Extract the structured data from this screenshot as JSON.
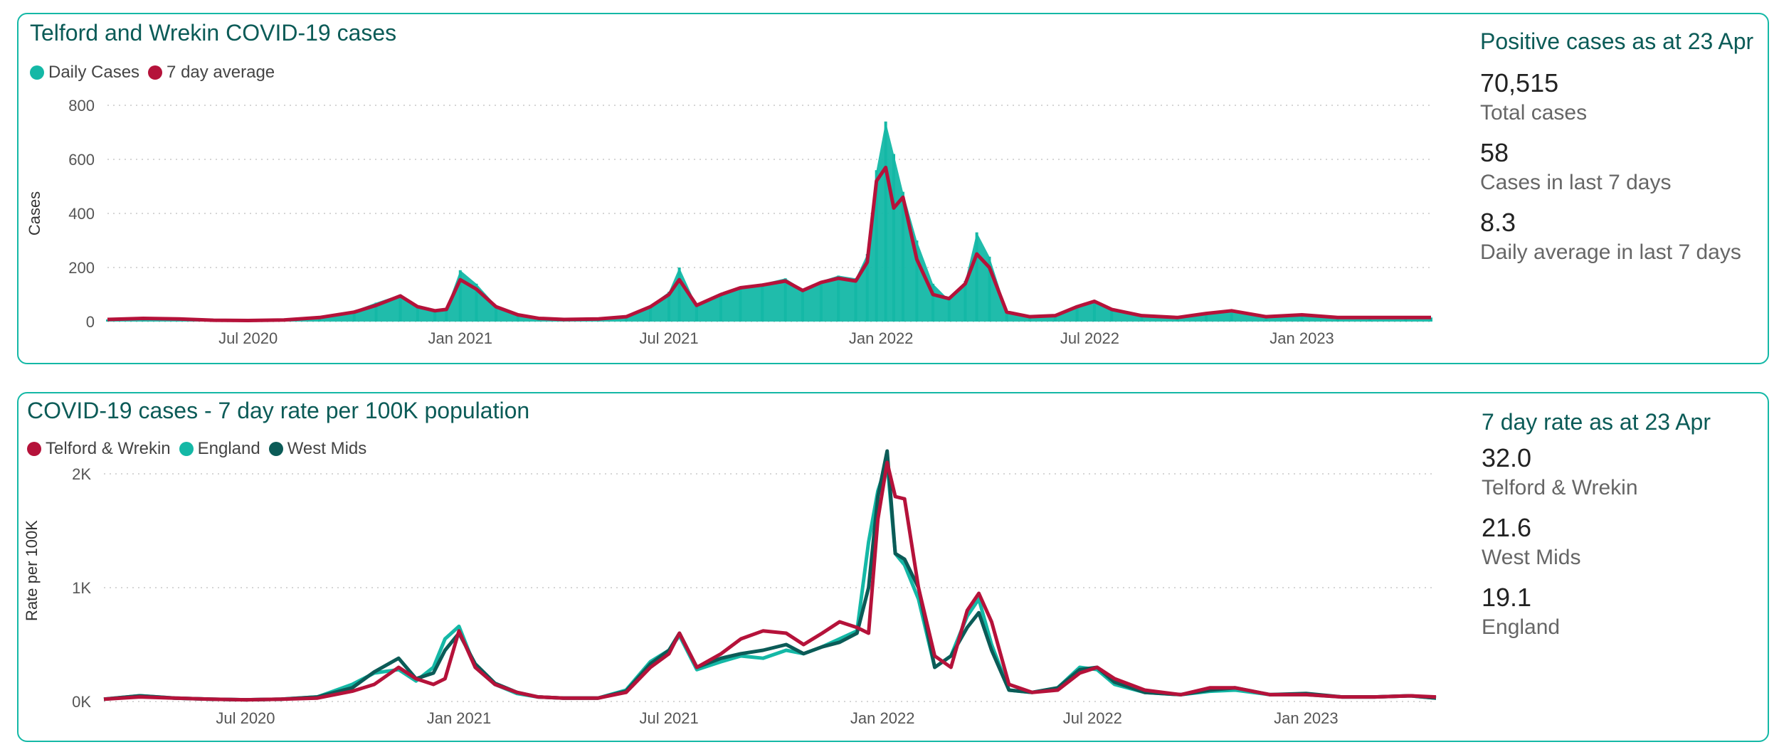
{
  "cases_panel": {
    "title": "Telford and Wrekin COVID-19 cases",
    "legend": [
      {
        "label": "Daily Cases",
        "color": "#14b8a6"
      },
      {
        "label": "7 day average",
        "color": "#b5123a"
      }
    ],
    "kpi_heading": "Positive cases as at 23 Apr",
    "kpis": [
      {
        "value": "70,515",
        "label": "Total cases"
      },
      {
        "value": "58",
        "label": "Cases in last 7 days"
      },
      {
        "value": "8.3",
        "label": "Daily average in last 7 days"
      }
    ]
  },
  "rate_panel": {
    "title": "COVID-19 cases - 7 day rate per 100K population",
    "legend": [
      {
        "label": "Telford & Wrekin",
        "color": "#b5123a"
      },
      {
        "label": "England",
        "color": "#14b8a6"
      },
      {
        "label": "West Mids",
        "color": "#0b5b57"
      }
    ],
    "kpi_heading": "7 day rate as at 23 Apr",
    "kpis": [
      {
        "value": "32.0",
        "label": "Telford & Wrekin"
      },
      {
        "value": "21.6",
        "label": "West Mids"
      },
      {
        "value": "19.1",
        "label": "England"
      }
    ]
  },
  "chart_data": [
    {
      "type": "bar",
      "title": "Telford and Wrekin COVID-19 cases",
      "xlabel": "",
      "ylabel": "Cases",
      "ylim": [
        0,
        800
      ],
      "yticks": [
        "0",
        "200",
        "400",
        "600",
        "800"
      ],
      "xticks": [
        "Jul 2020",
        "Jan 2021",
        "Jul 2021",
        "Jan 2022",
        "Jul 2022",
        "Jan 2023"
      ],
      "grid": true,
      "legend_position": "top-left",
      "x": [
        "2020-03-01",
        "2020-04-01",
        "2020-05-01",
        "2020-06-01",
        "2020-07-01",
        "2020-08-01",
        "2020-09-01",
        "2020-10-01",
        "2020-10-20",
        "2020-11-10",
        "2020-11-25",
        "2020-12-10",
        "2020-12-20",
        "2021-01-01",
        "2021-01-15",
        "2021-02-01",
        "2021-02-20",
        "2021-03-10",
        "2021-04-01",
        "2021-05-01",
        "2021-05-25",
        "2021-06-15",
        "2021-07-01",
        "2021-07-10",
        "2021-07-25",
        "2021-08-15",
        "2021-09-01",
        "2021-09-20",
        "2021-10-10",
        "2021-10-25",
        "2021-11-10",
        "2021-11-25",
        "2021-12-10",
        "2021-12-20",
        "2021-12-28",
        "2022-01-05",
        "2022-01-12",
        "2022-01-20",
        "2022-02-01",
        "2022-02-15",
        "2022-03-01",
        "2022-03-15",
        "2022-03-25",
        "2022-04-05",
        "2022-04-20",
        "2022-05-10",
        "2022-06-01",
        "2022-06-20",
        "2022-07-05",
        "2022-07-20",
        "2022-08-15",
        "2022-09-15",
        "2022-10-10",
        "2022-11-01",
        "2022-12-01",
        "2023-01-01",
        "2023-02-01",
        "2023-03-01",
        "2023-04-01",
        "2023-04-23"
      ],
      "series": [
        {
          "name": "Daily Cases",
          "values": [
            8,
            12,
            10,
            5,
            4,
            6,
            15,
            40,
            70,
            100,
            60,
            40,
            50,
            190,
            140,
            60,
            30,
            12,
            8,
            10,
            20,
            60,
            110,
            200,
            60,
            100,
            130,
            140,
            160,
            120,
            150,
            170,
            160,
            250,
            560,
            740,
            620,
            480,
            300,
            140,
            80,
            150,
            330,
            240,
            40,
            20,
            25,
            60,
            80,
            50,
            25,
            15,
            30,
            40,
            18,
            25,
            15,
            15,
            15,
            15
          ]
        },
        {
          "name": "7 day average",
          "values": [
            8,
            12,
            10,
            5,
            4,
            6,
            15,
            35,
            60,
            95,
            55,
            40,
            45,
            155,
            120,
            55,
            25,
            12,
            8,
            10,
            18,
            55,
            100,
            155,
            60,
            100,
            125,
            135,
            150,
            115,
            145,
            160,
            150,
            220,
            520,
            570,
            420,
            460,
            230,
            100,
            85,
            140,
            250,
            200,
            35,
            18,
            22,
            55,
            75,
            45,
            22,
            15,
            30,
            40,
            18,
            25,
            15,
            15,
            15,
            15
          ]
        }
      ]
    },
    {
      "type": "line",
      "title": "COVID-19 cases - 7 day rate per 100K population",
      "xlabel": "",
      "ylabel": "Rate per 100K",
      "ylim": [
        0,
        2300
      ],
      "yticks": [
        "0K",
        "1K",
        "2K"
      ],
      "xticks": [
        "Jul 2020",
        "Jan 2021",
        "Jul 2021",
        "Jan 2022",
        "Jul 2022",
        "Jan 2023"
      ],
      "grid": true,
      "legend_position": "top-left",
      "x": [
        "2020-03-01",
        "2020-04-01",
        "2020-05-01",
        "2020-06-01",
        "2020-07-01",
        "2020-08-01",
        "2020-09-01",
        "2020-10-01",
        "2020-10-20",
        "2020-11-10",
        "2020-11-25",
        "2020-12-10",
        "2020-12-20",
        "2021-01-01",
        "2021-01-15",
        "2021-02-01",
        "2021-02-20",
        "2021-03-10",
        "2021-04-01",
        "2021-05-01",
        "2021-05-25",
        "2021-06-15",
        "2021-07-01",
        "2021-07-10",
        "2021-07-25",
        "2021-08-15",
        "2021-09-01",
        "2021-09-20",
        "2021-10-10",
        "2021-10-25",
        "2021-11-10",
        "2021-11-25",
        "2021-12-10",
        "2021-12-20",
        "2021-12-28",
        "2022-01-05",
        "2022-01-12",
        "2022-01-20",
        "2022-02-01",
        "2022-02-15",
        "2022-03-01",
        "2022-03-15",
        "2022-03-25",
        "2022-04-05",
        "2022-04-20",
        "2022-05-10",
        "2022-06-01",
        "2022-06-20",
        "2022-07-05",
        "2022-07-20",
        "2022-08-15",
        "2022-09-15",
        "2022-10-10",
        "2022-11-01",
        "2022-12-01",
        "2023-01-01",
        "2023-02-01",
        "2023-03-01",
        "2023-04-01",
        "2023-04-23"
      ],
      "series": [
        {
          "name": "Telford & Wrekin",
          "values": [
            20,
            40,
            30,
            20,
            15,
            20,
            30,
            90,
            150,
            300,
            200,
            150,
            200,
            620,
            300,
            150,
            80,
            40,
            30,
            30,
            80,
            300,
            420,
            600,
            300,
            420,
            550,
            620,
            600,
            500,
            600,
            700,
            650,
            600,
            1600,
            2100,
            1800,
            1780,
            1000,
            400,
            300,
            800,
            950,
            700,
            150,
            80,
            100,
            250,
            300,
            200,
            100,
            60,
            120,
            120,
            60,
            60,
            40,
            40,
            50,
            40
          ]
        },
        {
          "name": "England",
          "values": [
            20,
            50,
            30,
            20,
            15,
            20,
            40,
            150,
            250,
            280,
            180,
            300,
            550,
            660,
            300,
            150,
            70,
            40,
            30,
            30,
            100,
            350,
            450,
            580,
            280,
            350,
            400,
            380,
            450,
            420,
            480,
            550,
            620,
            1400,
            1850,
            2100,
            1300,
            1200,
            900,
            300,
            400,
            750,
            900,
            500,
            100,
            80,
            120,
            300,
            280,
            150,
            80,
            60,
            90,
            100,
            60,
            60,
            40,
            40,
            50,
            30
          ]
        },
        {
          "name": "West Mids",
          "values": [
            20,
            50,
            30,
            20,
            15,
            20,
            40,
            120,
            260,
            380,
            200,
            250,
            450,
            600,
            330,
            160,
            80,
            40,
            30,
            30,
            90,
            330,
            450,
            600,
            300,
            380,
            420,
            450,
            500,
            420,
            480,
            520,
            600,
            1000,
            1800,
            2200,
            1300,
            1250,
            1000,
            300,
            400,
            650,
            780,
            450,
            100,
            80,
            120,
            280,
            300,
            170,
            80,
            60,
            100,
            120,
            60,
            70,
            40,
            40,
            50,
            30
          ]
        }
      ]
    }
  ]
}
